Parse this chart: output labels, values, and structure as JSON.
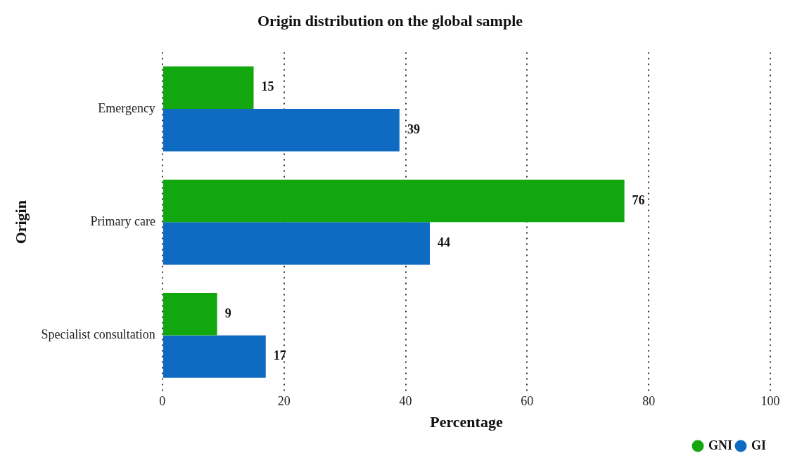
{
  "chart_data": {
    "type": "bar",
    "orientation": "horizontal",
    "title": "Origin distribution on the global sample",
    "xlabel": "Percentage",
    "ylabel": "Origin",
    "categories": [
      "Emergency",
      "Primary care",
      "Specialist consultation"
    ],
    "series": [
      {
        "name": "GNI",
        "color": "#12a70e",
        "values": [
          15,
          76,
          9
        ]
      },
      {
        "name": "GI",
        "color": "#0f6bc2",
        "values": [
          39,
          44,
          17
        ]
      }
    ],
    "xlim": [
      0,
      100
    ],
    "xticks": [
      0,
      20,
      40,
      60,
      80,
      100
    ],
    "grid": "x",
    "data_labels": true,
    "legend": "bottom right"
  }
}
